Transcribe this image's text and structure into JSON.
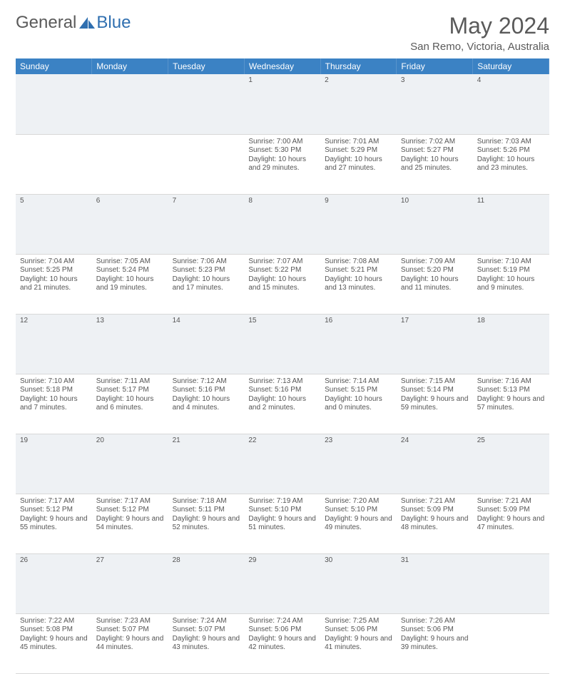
{
  "logo": {
    "text_a": "General",
    "text_b": "Blue",
    "color_a": "#6b6b6b",
    "color_b": "#2f6fb0",
    "icon_fill": "#2f6fb0"
  },
  "title": "May 2024",
  "location": "San Remo, Victoria, Australia",
  "header_bg": "#3b82c4",
  "daynum_bg": "#eef1f4",
  "days": [
    "Sunday",
    "Monday",
    "Tuesday",
    "Wednesday",
    "Thursday",
    "Friday",
    "Saturday"
  ],
  "weeks": [
    [
      null,
      null,
      null,
      {
        "n": "1",
        "sr": "7:00 AM",
        "ss": "5:30 PM",
        "dl": "10 hours and 29 minutes."
      },
      {
        "n": "2",
        "sr": "7:01 AM",
        "ss": "5:29 PM",
        "dl": "10 hours and 27 minutes."
      },
      {
        "n": "3",
        "sr": "7:02 AM",
        "ss": "5:27 PM",
        "dl": "10 hours and 25 minutes."
      },
      {
        "n": "4",
        "sr": "7:03 AM",
        "ss": "5:26 PM",
        "dl": "10 hours and 23 minutes."
      }
    ],
    [
      {
        "n": "5",
        "sr": "7:04 AM",
        "ss": "5:25 PM",
        "dl": "10 hours and 21 minutes."
      },
      {
        "n": "6",
        "sr": "7:05 AM",
        "ss": "5:24 PM",
        "dl": "10 hours and 19 minutes."
      },
      {
        "n": "7",
        "sr": "7:06 AM",
        "ss": "5:23 PM",
        "dl": "10 hours and 17 minutes."
      },
      {
        "n": "8",
        "sr": "7:07 AM",
        "ss": "5:22 PM",
        "dl": "10 hours and 15 minutes."
      },
      {
        "n": "9",
        "sr": "7:08 AM",
        "ss": "5:21 PM",
        "dl": "10 hours and 13 minutes."
      },
      {
        "n": "10",
        "sr": "7:09 AM",
        "ss": "5:20 PM",
        "dl": "10 hours and 11 minutes."
      },
      {
        "n": "11",
        "sr": "7:10 AM",
        "ss": "5:19 PM",
        "dl": "10 hours and 9 minutes."
      }
    ],
    [
      {
        "n": "12",
        "sr": "7:10 AM",
        "ss": "5:18 PM",
        "dl": "10 hours and 7 minutes."
      },
      {
        "n": "13",
        "sr": "7:11 AM",
        "ss": "5:17 PM",
        "dl": "10 hours and 6 minutes."
      },
      {
        "n": "14",
        "sr": "7:12 AM",
        "ss": "5:16 PM",
        "dl": "10 hours and 4 minutes."
      },
      {
        "n": "15",
        "sr": "7:13 AM",
        "ss": "5:16 PM",
        "dl": "10 hours and 2 minutes."
      },
      {
        "n": "16",
        "sr": "7:14 AM",
        "ss": "5:15 PM",
        "dl": "10 hours and 0 minutes."
      },
      {
        "n": "17",
        "sr": "7:15 AM",
        "ss": "5:14 PM",
        "dl": "9 hours and 59 minutes."
      },
      {
        "n": "18",
        "sr": "7:16 AM",
        "ss": "5:13 PM",
        "dl": "9 hours and 57 minutes."
      }
    ],
    [
      {
        "n": "19",
        "sr": "7:17 AM",
        "ss": "5:12 PM",
        "dl": "9 hours and 55 minutes."
      },
      {
        "n": "20",
        "sr": "7:17 AM",
        "ss": "5:12 PM",
        "dl": "9 hours and 54 minutes."
      },
      {
        "n": "21",
        "sr": "7:18 AM",
        "ss": "5:11 PM",
        "dl": "9 hours and 52 minutes."
      },
      {
        "n": "22",
        "sr": "7:19 AM",
        "ss": "5:10 PM",
        "dl": "9 hours and 51 minutes."
      },
      {
        "n": "23",
        "sr": "7:20 AM",
        "ss": "5:10 PM",
        "dl": "9 hours and 49 minutes."
      },
      {
        "n": "24",
        "sr": "7:21 AM",
        "ss": "5:09 PM",
        "dl": "9 hours and 48 minutes."
      },
      {
        "n": "25",
        "sr": "7:21 AM",
        "ss": "5:09 PM",
        "dl": "9 hours and 47 minutes."
      }
    ],
    [
      {
        "n": "26",
        "sr": "7:22 AM",
        "ss": "5:08 PM",
        "dl": "9 hours and 45 minutes."
      },
      {
        "n": "27",
        "sr": "7:23 AM",
        "ss": "5:07 PM",
        "dl": "9 hours and 44 minutes."
      },
      {
        "n": "28",
        "sr": "7:24 AM",
        "ss": "5:07 PM",
        "dl": "9 hours and 43 minutes."
      },
      {
        "n": "29",
        "sr": "7:24 AM",
        "ss": "5:06 PM",
        "dl": "9 hours and 42 minutes."
      },
      {
        "n": "30",
        "sr": "7:25 AM",
        "ss": "5:06 PM",
        "dl": "9 hours and 41 minutes."
      },
      {
        "n": "31",
        "sr": "7:26 AM",
        "ss": "5:06 PM",
        "dl": "9 hours and 39 minutes."
      },
      null
    ]
  ],
  "labels": {
    "sunrise": "Sunrise:",
    "sunset": "Sunset:",
    "daylight": "Daylight:"
  }
}
